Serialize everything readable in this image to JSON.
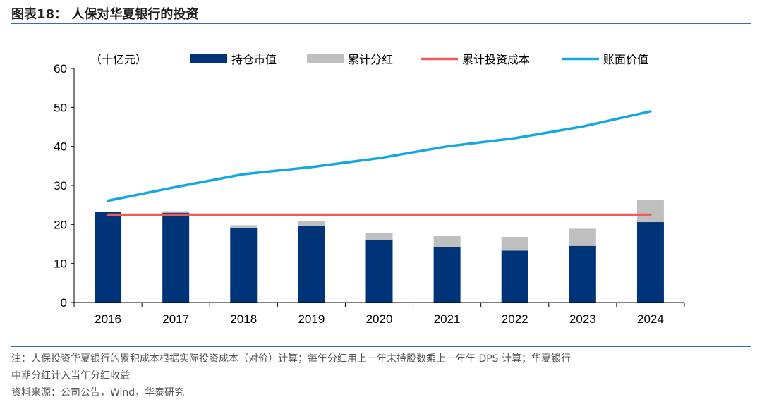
{
  "header": {
    "title": "图表18：  人保对华夏银行的投资"
  },
  "chart_data": {
    "type": "bar",
    "unit_label": "（十亿元）",
    "categories": [
      "2016",
      "2017",
      "2018",
      "2019",
      "2020",
      "2021",
      "2022",
      "2023",
      "2024"
    ],
    "ylim": [
      0,
      60
    ],
    "yticks": [
      0,
      10,
      20,
      30,
      40,
      50,
      60
    ],
    "grid": false,
    "legend_position": "top",
    "series": [
      {
        "name": "持仓市值",
        "kind": "bar",
        "stack": "a",
        "color": "#003478",
        "values": [
          23.2,
          23.0,
          19.0,
          19.7,
          16.0,
          14.3,
          13.3,
          14.5,
          20.6
        ]
      },
      {
        "name": "累计分红",
        "kind": "bar",
        "stack": "a",
        "color": "#bfbfbf",
        "values": [
          0.0,
          0.4,
          0.8,
          1.2,
          1.9,
          2.7,
          3.5,
          4.4,
          5.6
        ]
      },
      {
        "name": "累计投资成本",
        "kind": "line",
        "color": "#f05a5a",
        "values": [
          22.5,
          22.5,
          22.5,
          22.5,
          22.5,
          22.5,
          22.5,
          22.5,
          22.5
        ]
      },
      {
        "name": "账面价值",
        "kind": "line",
        "color": "#13a8e0",
        "values": [
          26.1,
          29.6,
          32.9,
          34.7,
          37.0,
          40.0,
          42.1,
          45.1,
          49.0
        ]
      }
    ]
  },
  "footnote": {
    "line1": "注：人保投资华夏银行的累积成本根据实际投资成本（对价）计算；每年分红用上一年末持股数乘上一年年 DPS 计算；华夏银行",
    "line2": "中期分红计入当年分红收益",
    "source": "资料来源：公司公告，Wind，华泰研究"
  }
}
